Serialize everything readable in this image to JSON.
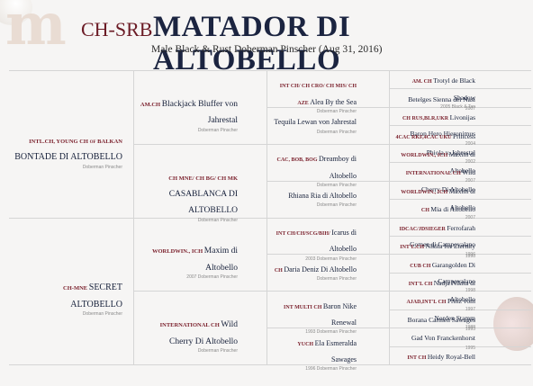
{
  "header": {
    "logo_letter": "m",
    "prefix": "CH-SRB",
    "name": "MATADOR DI ALTOBELLO",
    "description": "Male Black & Rust Doberman Pinscher (Aug 31, 2016)"
  },
  "gen1": [
    {
      "titles": "INTL.CH, YOUNG CH of BALKAN",
      "name": "BONTADE DI ALTOBELLO",
      "sub": "Doberman Pinscher"
    },
    {
      "titles": "CH-MNE",
      "name": "SECRET ALTOBELLO",
      "sub": "Doberman Pinscher"
    }
  ],
  "gen2": [
    {
      "titles": "AM.CH",
      "name": "Blackjack Bluffer von Jahrestal",
      "sub": "Doberman Pinscher"
    },
    {
      "titles": "CH MNE/ CH BG/ CH MK",
      "name": "CASABLANCA DI ALTOBELLO",
      "sub": "Doberman Pinscher"
    },
    {
      "titles": "WORLDWIN., ICH",
      "name": "Maxim di Altobello",
      "sub": "2007 Doberman Pinscher"
    },
    {
      "titles": "INTERNATIONAL CH",
      "name": "Wild Cherry Di Altobello",
      "sub": "Doberman Pinscher"
    }
  ],
  "gen3": [
    {
      "titles": "INT CH/ CH CRO/ CH MIS/ CH AZE",
      "name": "Alea By the Sea",
      "sub": "Doberman Pinscher"
    },
    {
      "titles": "",
      "name": "Tequila Lewan von Jahrestal",
      "sub": "Doberman Pinscher"
    },
    {
      "titles": "CAC, BOB, BOG",
      "name": "Dreamboy di Altobello",
      "sub": "Doberman Pinscher"
    },
    {
      "titles": "",
      "name": "Rhiana Ria di Altobello",
      "sub": "Doberman Pinscher"
    },
    {
      "titles": "INT CH/CH/SCG/BIH/",
      "name": "Icarus di Altobello",
      "sub": "2003 Doberman Pinscher"
    },
    {
      "titles": "CH",
      "name": "Daria Deniz Di Altobello",
      "sub": "Doberman Pinscher"
    },
    {
      "titles": "INT MULTI CH",
      "name": "Baron Nike Renewal",
      "sub": "1993 Doberman Pinscher"
    },
    {
      "titles": "YUCH",
      "name": "Ela Esmeralda Sawages",
      "sub": "1996 Doberman Pinscher"
    }
  ],
  "gen4": [
    {
      "titles": "AM. CH",
      "name": "Trotyl de Black Shadow",
      "sub": "2005 Black & Tan"
    },
    {
      "titles": "",
      "name": "Betelges Sienna del Nasi",
      "sub": "2007"
    },
    {
      "titles": "CH RUS,BLR,UKR",
      "name": "Livonijas Baron Hero Hieronimus",
      "sub": "2004"
    },
    {
      "titles": "4CAC RKF,4CAC UKU",
      "name": "Princess Phiola v. Jahrestal",
      "sub": "2002"
    },
    {
      "titles": "WORLDWIN., ICH",
      "name": "Maxim di Altobello",
      "sub": "2007"
    },
    {
      "titles": "INTERNATIONAL CH",
      "name": "Wild Cherry Di Altobello",
      "sub": ""
    },
    {
      "titles": "WORLDWIN., ICH",
      "name": "Maxim di Altobello",
      "sub": "2007"
    },
    {
      "titles": "CH",
      "name": "Mia di Altobello",
      "sub": ""
    },
    {
      "titles": "IDCAC/JDSIEGER",
      "name": "Ferrofarah Gomez di Campovalano",
      "sub": "1996"
    },
    {
      "titles": "INT'L.CH",
      "name": "Nikita for Eternity",
      "sub": "1998"
    },
    {
      "titles": "CUB CH",
      "name": "Garangolden Di Campovalano",
      "sub": "1998"
    },
    {
      "titles": "INT'L CH",
      "name": "Nadja Nikita di Altobello",
      "sub": "1997"
    },
    {
      "titles": "AJAD,INT'L CH",
      "name": "Prinz vom Norden Stamm",
      "sub": "1988"
    },
    {
      "titles": "",
      "name": "Borana Carmen Sawages",
      "sub": "1993"
    },
    {
      "titles": "",
      "name": "Gad Von Franckenhorst",
      "sub": "1995"
    },
    {
      "titles": "INT CH",
      "name": "Heidy Royal-Bell",
      "sub": ""
    }
  ]
}
